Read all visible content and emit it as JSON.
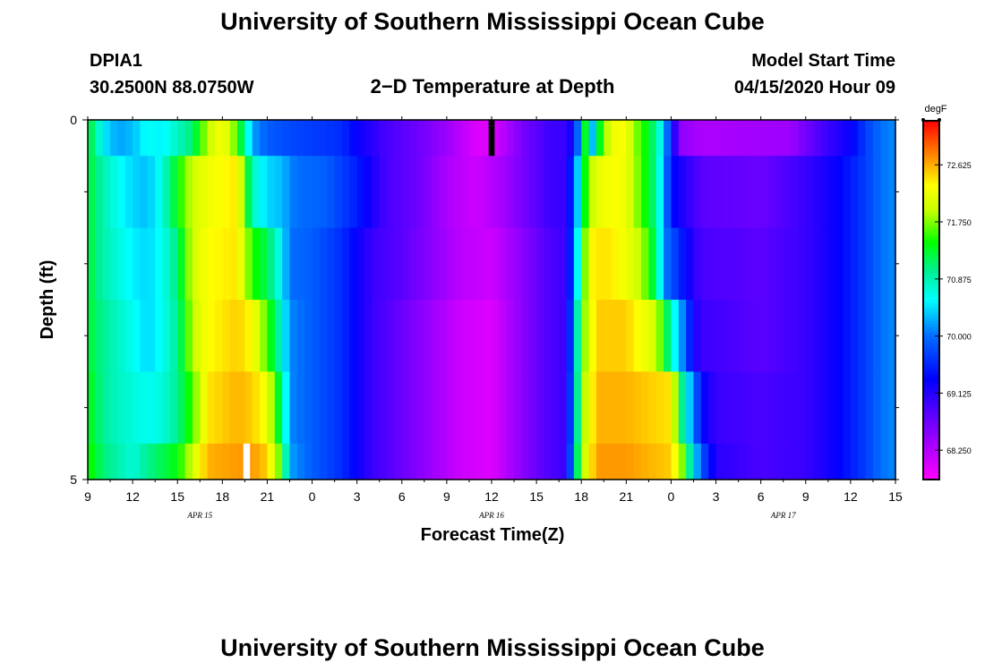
{
  "header": {
    "title": "University of Southern Mississippi Ocean Cube",
    "station_id": "DPIA1",
    "station_coords": "30.2500N 88.0750W",
    "plot_title": "2−D Temperature at Depth",
    "model_label": "Model Start Time",
    "model_start": "04/15/2020 Hour 09"
  },
  "footer": {
    "title": "University of Southern Mississippi Ocean Cube"
  },
  "chart_data": {
    "type": "heatmap",
    "title": "2−D Temperature at Depth",
    "xlabel": "Forecast Time(Z)",
    "ylabel": "Depth (ft)",
    "units": "degF",
    "x_ticks": [
      "9",
      "12",
      "15",
      "18",
      "21",
      "0",
      "3",
      "6",
      "9",
      "12",
      "15",
      "18",
      "21",
      "0",
      "3",
      "6",
      "9",
      "12",
      "15"
    ],
    "x_range_hours": [
      0,
      54
    ],
    "y_ticks": [
      "0",
      "5"
    ],
    "y_range": [
      0,
      5
    ],
    "date_labels": [
      {
        "label": "APR 15",
        "hour": 7.5
      },
      {
        "label": "APR 16",
        "hour": 27
      },
      {
        "label": "APR 17",
        "hour": 46.5
      }
    ],
    "colorbar": {
      "label": "degF",
      "min": 67.8,
      "max": 73.3,
      "ticks": [
        "72.625",
        "71.750",
        "70.875",
        "70.000",
        "69.125",
        "68.250"
      ]
    },
    "missing_segments": [
      {
        "hour_from": 26.8,
        "hour_to": 27.2,
        "depth_from": 0,
        "depth_to": 0.5,
        "color": "#000000"
      },
      {
        "hour_from": 10.4,
        "hour_to": 10.85,
        "depth_from": 4.5,
        "depth_to": 5,
        "color": "#ffffff"
      }
    ],
    "profiles": [
      {
        "depth_range": [
          0,
          0.5
        ],
        "points": [
          [
            0,
            71.3
          ],
          [
            0.5,
            71.0
          ],
          [
            1,
            70.5
          ],
          [
            2,
            70.2
          ],
          [
            3,
            70.3
          ],
          [
            4,
            70.6
          ],
          [
            5,
            70.5
          ],
          [
            6,
            70.8
          ],
          [
            7,
            71.1
          ],
          [
            8,
            71.9
          ],
          [
            9,
            72.3
          ],
          [
            10,
            71.6
          ],
          [
            11,
            70.2
          ],
          [
            12,
            69.9
          ],
          [
            13,
            69.8
          ],
          [
            15,
            69.7
          ],
          [
            17,
            69.6
          ],
          [
            18,
            69.3
          ],
          [
            20,
            68.9
          ],
          [
            22,
            68.7
          ],
          [
            24,
            68.4
          ],
          [
            26,
            68.0
          ],
          [
            27,
            68.0
          ],
          [
            28,
            68.3
          ],
          [
            29,
            68.6
          ],
          [
            31,
            69.0
          ],
          [
            32,
            69.0
          ],
          [
            32.5,
            69.4
          ],
          [
            33,
            70.5
          ],
          [
            33.3,
            71.5
          ],
          [
            33.7,
            70.2
          ],
          [
            34.2,
            71.3
          ],
          [
            35,
            72.2
          ],
          [
            36,
            72.3
          ],
          [
            36.5,
            71.8
          ],
          [
            37,
            71.6
          ],
          [
            37.5,
            71.3
          ],
          [
            38,
            71.0
          ],
          [
            38.3,
            70.6
          ],
          [
            39,
            69.6
          ],
          [
            39.5,
            68.5
          ],
          [
            41,
            68.3
          ],
          [
            47,
            68.4
          ],
          [
            49,
            68.9
          ],
          [
            51,
            69.3
          ],
          [
            52,
            69.7
          ],
          [
            53,
            70.0
          ],
          [
            54,
            70.1
          ]
        ]
      },
      {
        "depth_range": [
          0.5,
          1.5
        ],
        "points": [
          [
            0,
            71.3
          ],
          [
            1,
            70.9
          ],
          [
            2,
            70.6
          ],
          [
            3,
            70.4
          ],
          [
            4,
            70.3
          ],
          [
            5,
            70.7
          ],
          [
            6,
            71.4
          ],
          [
            7,
            72.0
          ],
          [
            8,
            72.2
          ],
          [
            10,
            72.4
          ],
          [
            11,
            70.8
          ],
          [
            12,
            70.4
          ],
          [
            13,
            70.3
          ],
          [
            13.5,
            70.1
          ],
          [
            14,
            70.0
          ],
          [
            16,
            69.9
          ],
          [
            18,
            69.5
          ],
          [
            20,
            68.9
          ],
          [
            22,
            68.7
          ],
          [
            24,
            68.3
          ],
          [
            26,
            68.1
          ],
          [
            28,
            68.4
          ],
          [
            30,
            68.8
          ],
          [
            31,
            69.0
          ],
          [
            32,
            69.0
          ],
          [
            32.5,
            69.9
          ],
          [
            33,
            70.8
          ],
          [
            33.4,
            71.8
          ],
          [
            34,
            72.1
          ],
          [
            35,
            72.3
          ],
          [
            36,
            72.2
          ],
          [
            37,
            71.6
          ],
          [
            38,
            71.0
          ],
          [
            38.6,
            70.0
          ],
          [
            39.3,
            69.3
          ],
          [
            40,
            69.1
          ],
          [
            41,
            68.8
          ],
          [
            45,
            68.7
          ],
          [
            48,
            69.0
          ],
          [
            50,
            69.3
          ],
          [
            52,
            69.7
          ],
          [
            53,
            70.0
          ],
          [
            54,
            70.1
          ]
        ]
      },
      {
        "depth_range": [
          1.5,
          2.5
        ],
        "points": [
          [
            0,
            71.3
          ],
          [
            1,
            70.9
          ],
          [
            2,
            70.7
          ],
          [
            3,
            70.5
          ],
          [
            4,
            70.4
          ],
          [
            5,
            70.6
          ],
          [
            6,
            71.1
          ],
          [
            7,
            72.0
          ],
          [
            8,
            72.3
          ],
          [
            10,
            72.4
          ],
          [
            11,
            71.5
          ],
          [
            12,
            71.2
          ],
          [
            13,
            70.5
          ],
          [
            13.5,
            70.0
          ],
          [
            15,
            69.9
          ],
          [
            17,
            69.6
          ],
          [
            19,
            69.0
          ],
          [
            21,
            68.8
          ],
          [
            23,
            68.5
          ],
          [
            25,
            68.2
          ],
          [
            27,
            68.1
          ],
          [
            29,
            68.5
          ],
          [
            31,
            68.9
          ],
          [
            32,
            69.0
          ],
          [
            32.5,
            70.0
          ],
          [
            33,
            71.2
          ],
          [
            33.5,
            72.3
          ],
          [
            34,
            72.4
          ],
          [
            35,
            72.4
          ],
          [
            36,
            72.2
          ],
          [
            37,
            71.9
          ],
          [
            38,
            71.1
          ],
          [
            38.5,
            70.1
          ],
          [
            39.5,
            69.6
          ],
          [
            40.3,
            69.2
          ],
          [
            41,
            68.9
          ],
          [
            45,
            68.8
          ],
          [
            48,
            69.0
          ],
          [
            50,
            69.3
          ],
          [
            52,
            69.7
          ],
          [
            53,
            70.0
          ],
          [
            54,
            70.1
          ]
        ]
      },
      {
        "depth_range": [
          2.5,
          3.5
        ],
        "points": [
          [
            0,
            71.3
          ],
          [
            1,
            71.0
          ],
          [
            2,
            70.8
          ],
          [
            3,
            70.6
          ],
          [
            4,
            70.4
          ],
          [
            5,
            70.6
          ],
          [
            6,
            71.0
          ],
          [
            7,
            71.9
          ],
          [
            8,
            72.3
          ],
          [
            10,
            72.5
          ],
          [
            11,
            72.3
          ],
          [
            12,
            71.6
          ],
          [
            13,
            70.7
          ],
          [
            13.5,
            70.1
          ],
          [
            15,
            69.9
          ],
          [
            17,
            69.6
          ],
          [
            19,
            69.0
          ],
          [
            21,
            68.7
          ],
          [
            23,
            68.4
          ],
          [
            25,
            68.1
          ],
          [
            27,
            68.0
          ],
          [
            29,
            68.5
          ],
          [
            31,
            68.9
          ],
          [
            32,
            69.0
          ],
          [
            32.5,
            70.2
          ],
          [
            33,
            71.6
          ],
          [
            34,
            72.5
          ],
          [
            36,
            72.5
          ],
          [
            38,
            72.0
          ],
          [
            38.7,
            71.2
          ],
          [
            39.3,
            70.5
          ],
          [
            40,
            69.9
          ],
          [
            40.5,
            69.2
          ],
          [
            41,
            69.0
          ],
          [
            45,
            68.8
          ],
          [
            48,
            69.0
          ],
          [
            50,
            69.3
          ],
          [
            52,
            69.7
          ],
          [
            53,
            70.0
          ],
          [
            54,
            70.1
          ]
        ]
      },
      {
        "depth_range": [
          3.5,
          4.5
        ],
        "points": [
          [
            0,
            71.4
          ],
          [
            1,
            71.0
          ],
          [
            2,
            70.8
          ],
          [
            3,
            70.7
          ],
          [
            4,
            70.6
          ],
          [
            5,
            70.7
          ],
          [
            6,
            71.0
          ],
          [
            7,
            71.6
          ],
          [
            8,
            72.4
          ],
          [
            10,
            72.6
          ],
          [
            11,
            72.5
          ],
          [
            12,
            72.2
          ],
          [
            13,
            71.0
          ],
          [
            13.5,
            70.1
          ],
          [
            15,
            69.9
          ],
          [
            17,
            69.6
          ],
          [
            19,
            69.0
          ],
          [
            21,
            68.7
          ],
          [
            23,
            68.4
          ],
          [
            25,
            68.1
          ],
          [
            27,
            68.0
          ],
          [
            29,
            68.5
          ],
          [
            31,
            68.9
          ],
          [
            32,
            69.0
          ],
          [
            32.5,
            70.3
          ],
          [
            33,
            71.7
          ],
          [
            34,
            72.6
          ],
          [
            36,
            72.6
          ],
          [
            39,
            72.4
          ],
          [
            39.5,
            71.4
          ],
          [
            40,
            70.6
          ],
          [
            40.5,
            70.1
          ],
          [
            41,
            69.4
          ],
          [
            42,
            69.0
          ],
          [
            45,
            68.9
          ],
          [
            48,
            69.0
          ],
          [
            50,
            69.3
          ],
          [
            52,
            69.7
          ],
          [
            53,
            70.0
          ],
          [
            54,
            70.1
          ]
        ]
      },
      {
        "depth_range": [
          4.5,
          5
        ],
        "points": [
          [
            0,
            71.5
          ],
          [
            1,
            71.1
          ],
          [
            2,
            70.9
          ],
          [
            3,
            70.7
          ],
          [
            4,
            71.0
          ],
          [
            5,
            71.2
          ],
          [
            6,
            71.4
          ],
          [
            7,
            72.0
          ],
          [
            8,
            72.6
          ],
          [
            10,
            72.7
          ],
          [
            11,
            72.7
          ],
          [
            12,
            72.5
          ],
          [
            13,
            71.5
          ],
          [
            13.5,
            70.2
          ],
          [
            15,
            69.9
          ],
          [
            17,
            69.6
          ],
          [
            19,
            69.0
          ],
          [
            21,
            68.7
          ],
          [
            23,
            68.4
          ],
          [
            25,
            68.1
          ],
          [
            27,
            68.0
          ],
          [
            29,
            68.5
          ],
          [
            31,
            68.9
          ],
          [
            32,
            69.0
          ],
          [
            32.5,
            70.5
          ],
          [
            33,
            71.8
          ],
          [
            34,
            72.7
          ],
          [
            36,
            72.7
          ],
          [
            39,
            72.5
          ],
          [
            39.5,
            72.1
          ],
          [
            40,
            71.4
          ],
          [
            40.5,
            70.5
          ],
          [
            41,
            69.9
          ],
          [
            42,
            69.1
          ],
          [
            45,
            68.9
          ],
          [
            48,
            69.0
          ],
          [
            50,
            69.3
          ],
          [
            52,
            69.7
          ],
          [
            53,
            70.0
          ],
          [
            54,
            70.1
          ]
        ]
      }
    ]
  }
}
